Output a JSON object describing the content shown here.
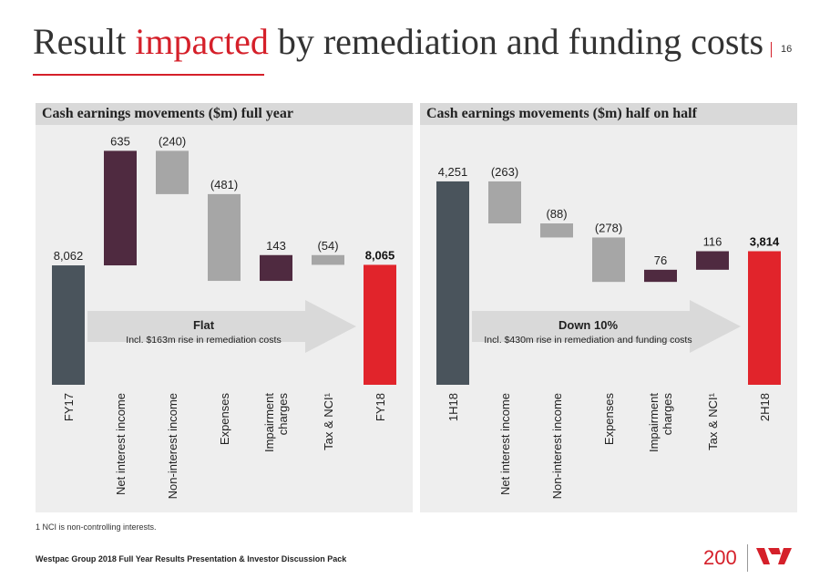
{
  "title": {
    "part1": "Result ",
    "highlight": "impacted",
    "part2": " by remediation and funding costs"
  },
  "page_number": "16",
  "footnote": "1 NCI is non-controlling interests.",
  "footer": "Westpac Group 2018 Full Year Results Presentation & Investor Discussion Pack",
  "logo": {
    "anniversary": "200",
    "brand_color": "#d5202a"
  },
  "colors": {
    "start": "#4a545c",
    "negative": "#a6a6a6",
    "positive": "#4f2a40",
    "end": "#e1242b",
    "arrow": "#d9d9d9",
    "panel_bg": "#eeeeee"
  },
  "chart_data": [
    {
      "type": "waterfall",
      "title": "Cash earnings movements ($m) full year",
      "categories": [
        "FY17",
        "Net interest income",
        "Non-interest income",
        "Expenses",
        "Impairment charges",
        "Tax & NCI¹",
        "FY18"
      ],
      "values": [
        8062,
        635,
        -240,
        -481,
        143,
        -54,
        8065
      ],
      "labels": [
        "8,062",
        "635",
        "(240)",
        "(481)",
        "143",
        "(54)",
        "8,065"
      ],
      "kinds": [
        "start",
        "positive",
        "negative",
        "negative",
        "positive",
        "negative",
        "end"
      ],
      "ylim": [
        7400,
        8780
      ],
      "arrow_title": "Flat",
      "arrow_text": "Incl. $163m rise in remediation costs"
    },
    {
      "type": "waterfall",
      "title": "Cash earnings movements ($m) half on half",
      "categories": [
        "1H18",
        "Net interest income",
        "Non-interest income",
        "Expenses",
        "Impairment charges",
        "Tax & NCI¹",
        "2H18"
      ],
      "values": [
        4251,
        -263,
        -88,
        -278,
        76,
        116,
        3814
      ],
      "labels": [
        "4,251",
        "(263)",
        "(88)",
        "(278)",
        "76",
        "116",
        "3,814"
      ],
      "kinds": [
        "start",
        "negative",
        "negative",
        "negative",
        "positive",
        "positive",
        "end"
      ],
      "ylim": [
        2978,
        4536
      ],
      "arrow_title": "Down 10%",
      "arrow_text": "Incl. $430m rise in remediation and funding costs"
    }
  ]
}
